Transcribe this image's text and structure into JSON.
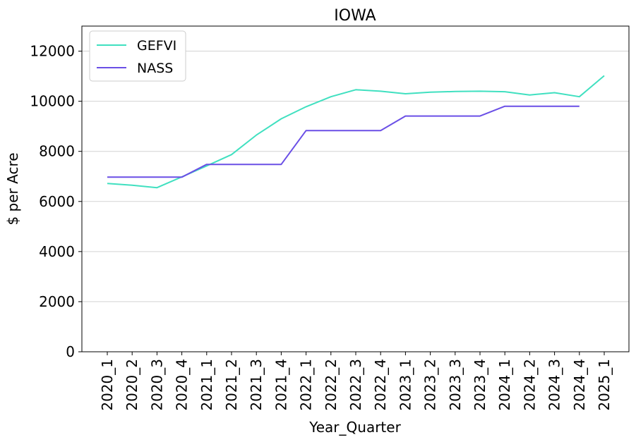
{
  "chart_data": {
    "type": "line",
    "title": "IOWA",
    "xlabel": "Year_Quarter",
    "ylabel": "$ per Acre",
    "ylim": [
      0,
      13000
    ],
    "yticks": [
      0,
      2000,
      4000,
      6000,
      8000,
      10000,
      12000
    ],
    "grid": "horizontal",
    "legend_position": "top-left",
    "categories": [
      "2020_1",
      "2020_2",
      "2020_3",
      "2020_4",
      "2021_1",
      "2021_2",
      "2021_3",
      "2021_4",
      "2022_1",
      "2022_2",
      "2022_3",
      "2022_4",
      "2023_1",
      "2023_2",
      "2023_3",
      "2023_4",
      "2024_1",
      "2024_2",
      "2024_3",
      "2024_4",
      "2025_1"
    ],
    "series": [
      {
        "name": "GEFVI",
        "color": "#40e0c0",
        "values": [
          6720,
          6650,
          6550,
          6980,
          7420,
          7870,
          8650,
          9300,
          9780,
          10180,
          10460,
          10400,
          10300,
          10360,
          10390,
          10400,
          10380,
          10250,
          10340,
          10180,
          11020
        ]
      },
      {
        "name": "NASS",
        "color": "#6a4fe6",
        "values": [
          6970,
          6970,
          6970,
          6970,
          7480,
          7480,
          7480,
          7480,
          8830,
          8830,
          8830,
          8830,
          9410,
          9410,
          9410,
          9410,
          9800,
          9800,
          9800,
          9800,
          null
        ]
      }
    ]
  }
}
